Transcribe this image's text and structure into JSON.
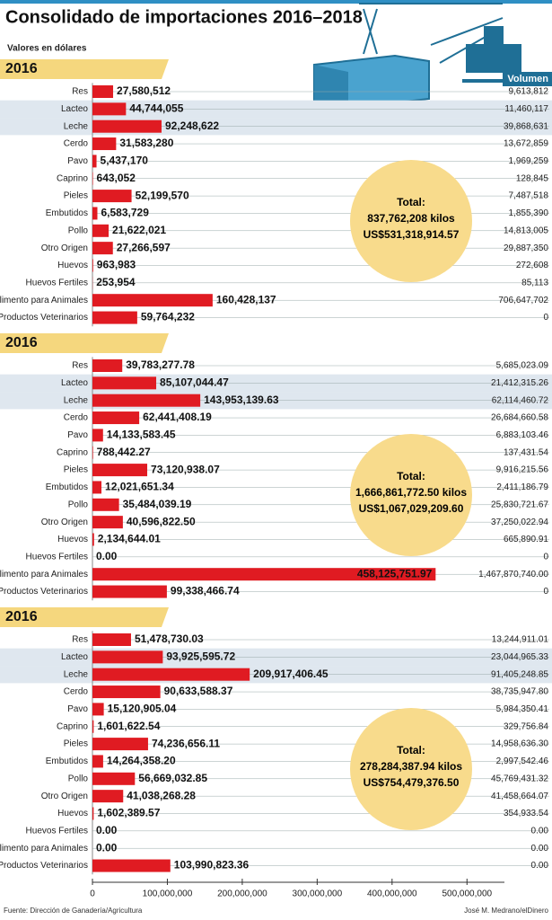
{
  "title": "Consolidado de importaciones 2016–2018",
  "subtitle": "Valores en dólares",
  "volume_header": "Volumen",
  "source": "Fuente: Dirección de Ganadería/Agricultura",
  "credit": "José M. Medrano/elDinero",
  "chart_data": [
    {
      "type": "bar",
      "title": "2016",
      "color": "#e01b22",
      "xlim": [
        0,
        550000000
      ],
      "categories": [
        "Res",
        "Lacteo",
        "Leche",
        "Cerdo",
        "Pavo",
        "Caprino",
        "Pieles",
        "Embutidos",
        "Pollo",
        "Otro Origen",
        "Huevos",
        "Huevos Fertiles",
        "Alimento para Animales",
        "Productos Veterinarios"
      ],
      "values": [
        27580512,
        44744055,
        92248622,
        31583280,
        5437170,
        643052,
        52199570,
        6583729,
        21622021,
        27266597,
        963983,
        253954,
        160428137,
        59764232
      ],
      "value_labels": [
        "27,580,512",
        "44,744,055",
        "92,248,622",
        "31,583,280",
        "5,437,170",
        "643,052",
        "52,199,570",
        "6,583,729",
        "21,622,021",
        "27,266,597",
        "963,983",
        "253,954",
        "160,428,137",
        "59,764,232"
      ],
      "volume": [
        "9,613,812",
        "11,460,117",
        "39,868,631",
        "13,672,859",
        "1,969,259",
        "128,845",
        "7,487,518",
        "1,855,390",
        "14,813,005",
        "29,887,350",
        "272,608",
        "85,113",
        "706,647,702",
        "0"
      ],
      "total_label": "Total:",
      "total_kilos": "837,762,208 kilos",
      "total_usd": "US$531,318,914.57"
    },
    {
      "type": "bar",
      "title": "2016",
      "color": "#e01b22",
      "xlim": [
        0,
        550000000
      ],
      "categories": [
        "Res",
        "Lacteo",
        "Leche",
        "Cerdo",
        "Pavo",
        "Caprino",
        "Pieles",
        "Embutidos",
        "Pollo",
        "Otro Origen",
        "Huevos",
        "Huevos Fertiles",
        "Alimento para Animales",
        "Productos Veterinarios"
      ],
      "values": [
        39783277.78,
        85107044.47,
        143953139.63,
        62441408.19,
        14133583.45,
        788442.27,
        73120938.07,
        12021651.34,
        35484039.19,
        40596822.5,
        2134644.01,
        0,
        458125751.97,
        99338466.74
      ],
      "value_labels": [
        "39,783,277.78",
        "85,107,044.47",
        "143,953,139.63",
        "62,441,408.19",
        "14,133,583.45",
        "788,442.27",
        "73,120,938.07",
        "12,021,651.34",
        "35,484,039.19",
        "40,596,822.50",
        "2,134,644.01",
        "0.00",
        "458,125,751.97",
        "99,338,466.74"
      ],
      "volume": [
        "5,685,023.09",
        "21,412,315.26",
        "62,114,460.72",
        "26,684,660.58",
        "6,883,103.46",
        "137,431.54",
        "9,916,215.56",
        "2,411,186.79",
        "25,830,721.67",
        "37,250,022.94",
        "665,890.91",
        "0",
        "1,467,870,740.00",
        "0"
      ],
      "total_label": "Total:",
      "total_kilos": "1,666,861,772.50 kilos",
      "total_usd": "US$1,067,029,209.60"
    },
    {
      "type": "bar",
      "title": "2016",
      "color": "#e01b22",
      "xlim": [
        0,
        550000000
      ],
      "categories": [
        "Res",
        "Lacteo",
        "Leche",
        "Cerdo",
        "Pavo",
        "Caprino",
        "Pieles",
        "Embutidos",
        "Pollo",
        "Otro Origen",
        "Huevos",
        "Huevos Fertiles",
        "Alimento para Animales",
        "Productos Veterinarios"
      ],
      "values": [
        51478730.03,
        93925595.72,
        209917406.45,
        90633588.37,
        15120905.04,
        1601622.54,
        74236656.11,
        14264358.2,
        56669032.85,
        41038268.28,
        1602389.57,
        0,
        0,
        103990823.36
      ],
      "value_labels": [
        "51,478,730.03",
        "93,925,595.72",
        "209,917,406.45",
        "90,633,588.37",
        "15,120,905.04",
        "1,601,622.54",
        "74,236,656.11",
        "14,264,358.20",
        "56,669,032.85",
        "41,038,268.28",
        "1,602,389.57",
        "0.00",
        "0.00",
        "103,990,823.36"
      ],
      "volume": [
        "13,244,911.01",
        "23,044,965.33",
        "91,405,248.85",
        "38,735,947.80",
        "5,984,350.41",
        "329,756.84",
        "14,958,636.30",
        "2,997,542.46",
        "45,769,431.32",
        "41,458,664.07",
        "354,933.54",
        "0.00",
        "0.00",
        "0.00"
      ],
      "total_label": "Total:",
      "total_kilos": "278,284,387.94 kilos",
      "total_usd": "US$754,479,376.50",
      "xticks": [
        0,
        {
          "value": 100000000,
          "label": "100,000,000"
        },
        {
          "value": 200000000,
          "label": "200,000,000"
        },
        {
          "value": 300000000,
          "label": "300,000,000"
        },
        {
          "value": 400000000,
          "label": "400,000,000"
        },
        {
          "value": 500000000,
          "label": "500,000,000"
        }
      ]
    }
  ]
}
